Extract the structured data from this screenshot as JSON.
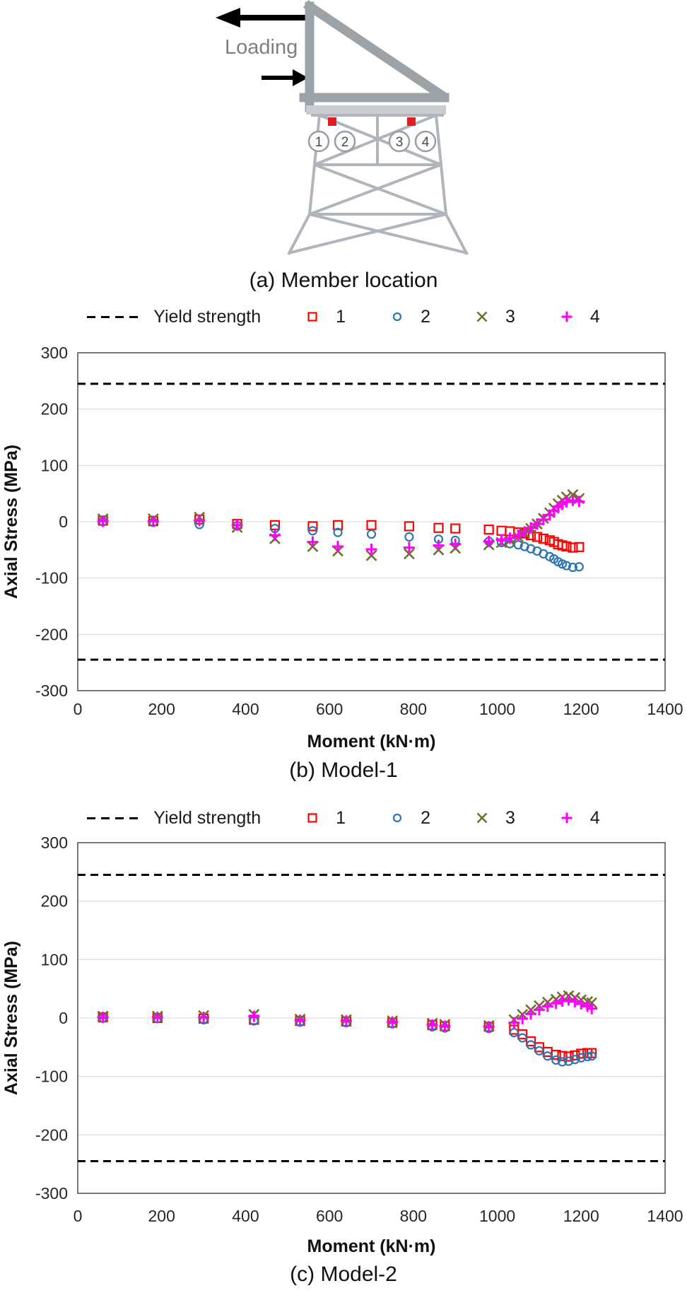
{
  "diagram": {
    "loading_label": "Loading",
    "members": [
      "1",
      "2",
      "3",
      "4"
    ],
    "colors": {
      "structure": "#9CA3A8",
      "lattice": "#AFB5BB",
      "platform": "#C9CDD1",
      "member_marker": "#E02020",
      "arrow": "#000000",
      "label": "#7F7F7F"
    }
  },
  "captions": {
    "a": "(a) Member location",
    "b": "(b) Model-1",
    "c": "(c) Model-2"
  },
  "legend": {
    "yield_label": "Yield strength"
  },
  "chart_data": [
    {
      "type": "scatter",
      "title": "(b) Model-1",
      "xlabel": "Moment (kN·m)",
      "ylabel": "Axial Stress (MPa)",
      "xlim": [
        0,
        1400
      ],
      "xtick_step": 200,
      "ylim": [
        -300,
        300
      ],
      "ytick_step": 100,
      "grid": "horizontal",
      "legend_position": "top",
      "yield_strength_mpa": 245,
      "yield_line_style": "dashed-black",
      "series": [
        {
          "name": "1",
          "marker": "open-square",
          "color": "#FF0000",
          "points": [
            [
              60,
              2
            ],
            [
              180,
              1
            ],
            [
              290,
              4
            ],
            [
              380,
              -4
            ],
            [
              470,
              -6
            ],
            [
              560,
              -8
            ],
            [
              620,
              -6
            ],
            [
              700,
              -6
            ],
            [
              790,
              -8
            ],
            [
              860,
              -11
            ],
            [
              900,
              -12
            ],
            [
              980,
              -14
            ],
            [
              1010,
              -16
            ],
            [
              1030,
              -17
            ],
            [
              1050,
              -19
            ],
            [
              1065,
              -21
            ],
            [
              1080,
              -24
            ],
            [
              1095,
              -27
            ],
            [
              1110,
              -30
            ],
            [
              1125,
              -33
            ],
            [
              1135,
              -36
            ],
            [
              1145,
              -40
            ],
            [
              1155,
              -42
            ],
            [
              1165,
              -44
            ],
            [
              1180,
              -46
            ],
            [
              1195,
              -45
            ]
          ]
        },
        {
          "name": "2",
          "marker": "open-circle",
          "color": "#2E75B6",
          "points": [
            [
              60,
              0
            ],
            [
              180,
              -1
            ],
            [
              290,
              -5
            ],
            [
              380,
              -7
            ],
            [
              470,
              -12
            ],
            [
              560,
              -16
            ],
            [
              620,
              -19
            ],
            [
              700,
              -22
            ],
            [
              790,
              -27
            ],
            [
              860,
              -31
            ],
            [
              900,
              -33
            ],
            [
              980,
              -35
            ],
            [
              1010,
              -37
            ],
            [
              1030,
              -39
            ],
            [
              1050,
              -41
            ],
            [
              1065,
              -44
            ],
            [
              1080,
              -48
            ],
            [
              1095,
              -52
            ],
            [
              1110,
              -57
            ],
            [
              1125,
              -62
            ],
            [
              1135,
              -66
            ],
            [
              1145,
              -71
            ],
            [
              1155,
              -75
            ],
            [
              1165,
              -78
            ],
            [
              1180,
              -81
            ],
            [
              1195,
              -80
            ]
          ]
        },
        {
          "name": "3",
          "marker": "x",
          "color": "#6E702B",
          "points": [
            [
              60,
              5
            ],
            [
              180,
              5
            ],
            [
              290,
              8
            ],
            [
              380,
              -10
            ],
            [
              470,
              -30
            ],
            [
              560,
              -44
            ],
            [
              620,
              -52
            ],
            [
              700,
              -60
            ],
            [
              790,
              -57
            ],
            [
              860,
              -50
            ],
            [
              900,
              -47
            ],
            [
              980,
              -41
            ],
            [
              1010,
              -37
            ],
            [
              1030,
              -33
            ],
            [
              1050,
              -27
            ],
            [
              1065,
              -20
            ],
            [
              1080,
              -12
            ],
            [
              1095,
              -4
            ],
            [
              1110,
              6
            ],
            [
              1125,
              16
            ],
            [
              1135,
              24
            ],
            [
              1145,
              32
            ],
            [
              1155,
              38
            ],
            [
              1165,
              44
            ],
            [
              1180,
              48
            ],
            [
              1195,
              41
            ]
          ]
        },
        {
          "name": "4",
          "marker": "plus",
          "color": "#FF00FF",
          "points": [
            [
              60,
              1
            ],
            [
              180,
              1
            ],
            [
              290,
              2
            ],
            [
              380,
              -6
            ],
            [
              470,
              -24
            ],
            [
              560,
              -36
            ],
            [
              620,
              -44
            ],
            [
              700,
              -49
            ],
            [
              790,
              -46
            ],
            [
              860,
              -42
            ],
            [
              900,
              -40
            ],
            [
              980,
              -35
            ],
            [
              1010,
              -32
            ],
            [
              1030,
              -29
            ],
            [
              1050,
              -24
            ],
            [
              1065,
              -18
            ],
            [
              1080,
              -11
            ],
            [
              1095,
              -4
            ],
            [
              1110,
              4
            ],
            [
              1125,
              12
            ],
            [
              1135,
              19
            ],
            [
              1145,
              26
            ],
            [
              1155,
              31
            ],
            [
              1165,
              35
            ],
            [
              1180,
              38
            ],
            [
              1195,
              36
            ]
          ]
        }
      ]
    },
    {
      "type": "scatter",
      "title": "(c) Model-2",
      "xlabel": "Moment (kN·m)",
      "ylabel": "Axial Stress (MPa)",
      "xlim": [
        0,
        1400
      ],
      "xtick_step": 200,
      "ylim": [
        -300,
        300
      ],
      "ytick_step": 100,
      "grid": "horizontal",
      "legend_position": "top",
      "yield_strength_mpa": 245,
      "yield_line_style": "dashed-black",
      "series": [
        {
          "name": "1",
          "marker": "open-square",
          "color": "#FF0000",
          "points": [
            [
              60,
              1
            ],
            [
              190,
              0
            ],
            [
              300,
              -1
            ],
            [
              420,
              -3
            ],
            [
              530,
              -5
            ],
            [
              640,
              -6
            ],
            [
              750,
              -8
            ],
            [
              845,
              -12
            ],
            [
              875,
              -14
            ],
            [
              980,
              -15
            ],
            [
              1040,
              -20
            ],
            [
              1060,
              -28
            ],
            [
              1080,
              -40
            ],
            [
              1100,
              -50
            ],
            [
              1120,
              -58
            ],
            [
              1140,
              -63
            ],
            [
              1155,
              -65
            ],
            [
              1170,
              -66
            ],
            [
              1185,
              -64
            ],
            [
              1200,
              -61
            ],
            [
              1215,
              -60
            ],
            [
              1225,
              -60
            ]
          ]
        },
        {
          "name": "2",
          "marker": "open-circle",
          "color": "#2E75B6",
          "points": [
            [
              60,
              0
            ],
            [
              190,
              -1
            ],
            [
              300,
              -3
            ],
            [
              420,
              -5
            ],
            [
              530,
              -7
            ],
            [
              640,
              -8
            ],
            [
              750,
              -10
            ],
            [
              845,
              -15
            ],
            [
              875,
              -17
            ],
            [
              980,
              -18
            ],
            [
              1040,
              -25
            ],
            [
              1060,
              -34
            ],
            [
              1080,
              -46
            ],
            [
              1100,
              -56
            ],
            [
              1120,
              -65
            ],
            [
              1140,
              -72
            ],
            [
              1155,
              -75
            ],
            [
              1170,
              -74
            ],
            [
              1185,
              -71
            ],
            [
              1200,
              -68
            ],
            [
              1215,
              -66
            ],
            [
              1225,
              -65
            ]
          ]
        },
        {
          "name": "3",
          "marker": "x",
          "color": "#6E702B",
          "points": [
            [
              60,
              3
            ],
            [
              190,
              3
            ],
            [
              300,
              4
            ],
            [
              420,
              6
            ],
            [
              530,
              -2
            ],
            [
              640,
              -3
            ],
            [
              750,
              -5
            ],
            [
              845,
              -9
            ],
            [
              875,
              -11
            ],
            [
              980,
              -13
            ],
            [
              1040,
              -3
            ],
            [
              1060,
              6
            ],
            [
              1080,
              14
            ],
            [
              1100,
              21
            ],
            [
              1120,
              27
            ],
            [
              1140,
              32
            ],
            [
              1155,
              36
            ],
            [
              1170,
              38
            ],
            [
              1185,
              35
            ],
            [
              1200,
              31
            ],
            [
              1215,
              28
            ],
            [
              1225,
              26
            ]
          ]
        },
        {
          "name": "4",
          "marker": "plus",
          "color": "#FF00FF",
          "points": [
            [
              60,
              1
            ],
            [
              190,
              1
            ],
            [
              300,
              1
            ],
            [
              420,
              3
            ],
            [
              530,
              -4
            ],
            [
              640,
              -5
            ],
            [
              750,
              -7
            ],
            [
              845,
              -12
            ],
            [
              875,
              -14
            ],
            [
              980,
              -15
            ],
            [
              1040,
              -8
            ],
            [
              1060,
              -1
            ],
            [
              1080,
              7
            ],
            [
              1100,
              14
            ],
            [
              1120,
              20
            ],
            [
              1140,
              25
            ],
            [
              1155,
              29
            ],
            [
              1170,
              31
            ],
            [
              1185,
              28
            ],
            [
              1200,
              24
            ],
            [
              1215,
              20
            ],
            [
              1225,
              16
            ]
          ]
        }
      ]
    }
  ]
}
